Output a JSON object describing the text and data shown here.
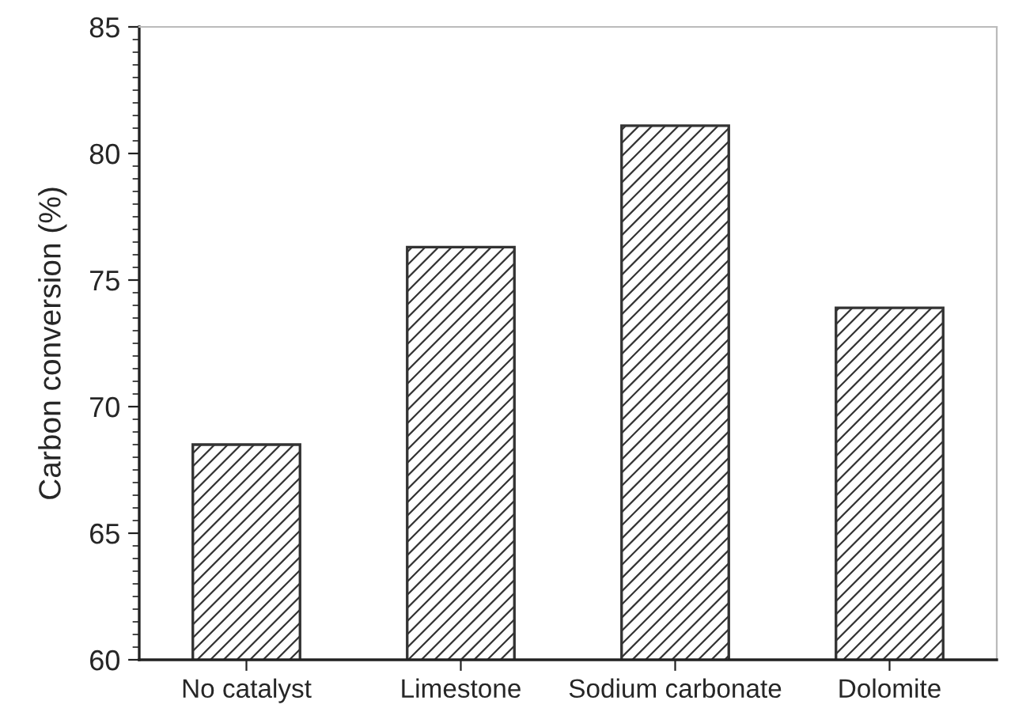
{
  "chart_data": {
    "type": "bar",
    "ylabel": "Carbon conversion (%)",
    "categories": [
      "No catalyst",
      "Limestone",
      "Sodium carbonate",
      "Dolomite"
    ],
    "values": [
      68.5,
      76.3,
      81.1,
      73.9
    ],
    "color": "#333333",
    "ylim": [
      60,
      85
    ],
    "yticks": [
      60,
      65,
      70,
      75,
      80,
      85
    ],
    "grid": false
  }
}
